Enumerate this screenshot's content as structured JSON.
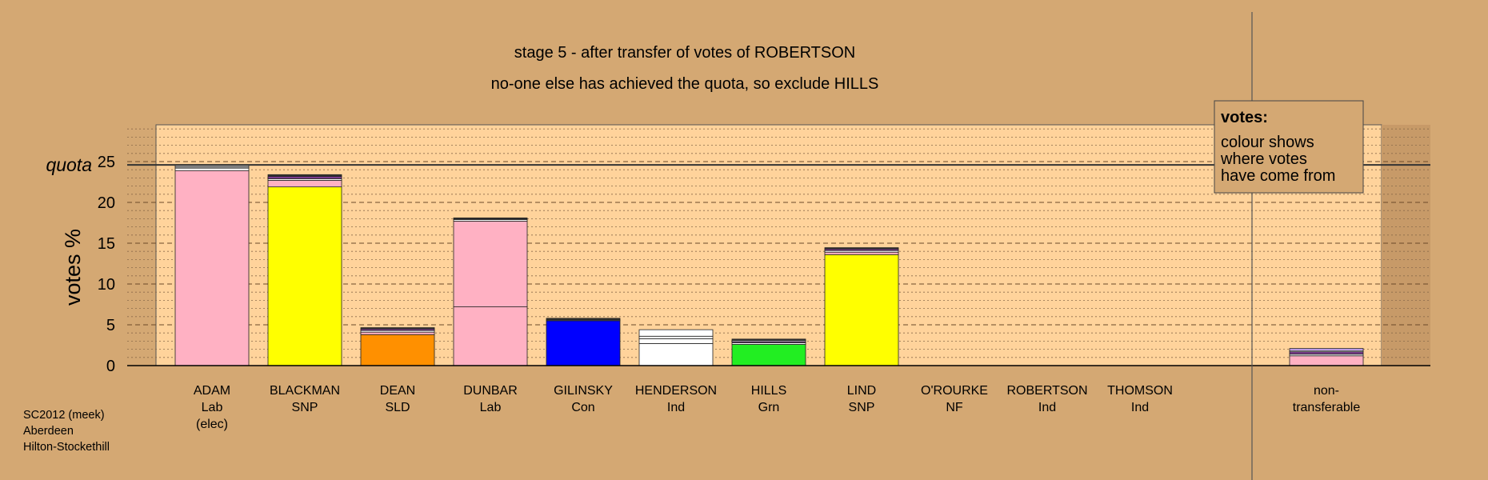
{
  "chart_data": {
    "type": "bar",
    "title": "stage 5 - after transfer of votes of ROBERTSON",
    "subtitle": "no-one else has achieved the quota, so exclude HILLS",
    "ylabel": "votes %",
    "quota_label": "quota",
    "quota_value": 24.6,
    "ylim": [
      0,
      29.5
    ],
    "yticks": [
      0,
      5,
      10,
      15,
      20,
      25
    ],
    "grid": true,
    "legend": {
      "title": "votes:",
      "lines": [
        "colour shows",
        "where votes",
        "have come from"
      ],
      "position": "top-right"
    },
    "footnote": [
      "SC2012 (meek)",
      "Aberdeen",
      "Hilton-Stockethill"
    ],
    "candidates": [
      {
        "name": "ADAM",
        "party": "Lab",
        "note": "(elec)",
        "segments": [
          {
            "color": "#ffb1c3",
            "value": 23.9
          },
          {
            "color": "#ffffff",
            "value": 0.3
          },
          {
            "color": "#aaaaaa",
            "value": 0.2
          },
          {
            "color": "#ffffff",
            "value": 0.15
          }
        ]
      },
      {
        "name": "BLACKMAN",
        "party": "SNP",
        "note": "",
        "segments": [
          {
            "color": "#ffff00",
            "value": 21.9
          },
          {
            "color": "#ffb1c3",
            "value": 0.8
          },
          {
            "color": "#ffffff",
            "value": 0.2
          },
          {
            "color": "#7a3b8c",
            "value": 0.3
          },
          {
            "color": "#333333",
            "value": 0.2
          }
        ]
      },
      {
        "name": "DEAN",
        "party": "SLD",
        "note": "",
        "segments": [
          {
            "color": "#ff9000",
            "value": 3.8
          },
          {
            "color": "#ffb1c3",
            "value": 0.3
          },
          {
            "color": "#ffffff",
            "value": 0.2
          },
          {
            "color": "#7a3b8c",
            "value": 0.2
          },
          {
            "color": "#333333",
            "value": 0.15
          }
        ]
      },
      {
        "name": "DUNBAR",
        "party": "Lab",
        "note": "",
        "segments": [
          {
            "color": "#ffb1c3",
            "value": 7.2
          },
          {
            "color": "#ffb1c3",
            "value": 10.5
          },
          {
            "color": "#ffffff",
            "value": 0.2
          },
          {
            "color": "#aaaaaa",
            "value": 0.1
          },
          {
            "color": "#333333",
            "value": 0.1
          }
        ]
      },
      {
        "name": "GILINSKY",
        "party": "Con",
        "note": "",
        "segments": [
          {
            "color": "#0000ff",
            "value": 5.5
          },
          {
            "color": "#ffffff",
            "value": 0.1
          },
          {
            "color": "#333333",
            "value": 0.2
          }
        ]
      },
      {
        "name": "HENDERSON",
        "party": "Ind",
        "note": "",
        "segments": [
          {
            "color": "#ffffff",
            "value": 2.7
          },
          {
            "color": "#ffffff",
            "value": 0.6
          },
          {
            "color": "#ffffff",
            "value": 0.3
          },
          {
            "color": "#ffffff",
            "value": 0.8
          }
        ]
      },
      {
        "name": "HILLS",
        "party": "Grn",
        "note": "",
        "segments": [
          {
            "color": "#22ee22",
            "value": 2.6
          },
          {
            "color": "#ffffff",
            "value": 0.2
          },
          {
            "color": "#7a3b8c",
            "value": 0.15
          },
          {
            "color": "#ffffff",
            "value": 0.15
          },
          {
            "color": "#333333",
            "value": 0.15
          }
        ]
      },
      {
        "name": "LIND",
        "party": "SNP",
        "note": "",
        "segments": [
          {
            "color": "#ffff00",
            "value": 13.6
          },
          {
            "color": "#ffb1c3",
            "value": 0.3
          },
          {
            "color": "#ffffff",
            "value": 0.2
          },
          {
            "color": "#7a3b8c",
            "value": 0.2
          },
          {
            "color": "#333333",
            "value": 0.15
          }
        ]
      },
      {
        "name": "O'ROURKE",
        "party": "NF",
        "note": "",
        "segments": []
      },
      {
        "name": "ROBERTSON",
        "party": "Ind",
        "note": "",
        "segments": []
      },
      {
        "name": "THOMSON",
        "party": "Ind",
        "note": "",
        "segments": []
      }
    ],
    "nontransferable": {
      "label_lines": [
        "non-",
        "transferable"
      ],
      "segments": [
        {
          "color": "#ffb1c3",
          "value": 1.2
        },
        {
          "color": "#ffffff",
          "value": 0.2
        },
        {
          "color": "#7a3b8c",
          "value": 0.3
        },
        {
          "color": "#ffffff",
          "value": 0.15
        },
        {
          "color": "#ccaaff",
          "value": 0.25
        }
      ]
    }
  }
}
